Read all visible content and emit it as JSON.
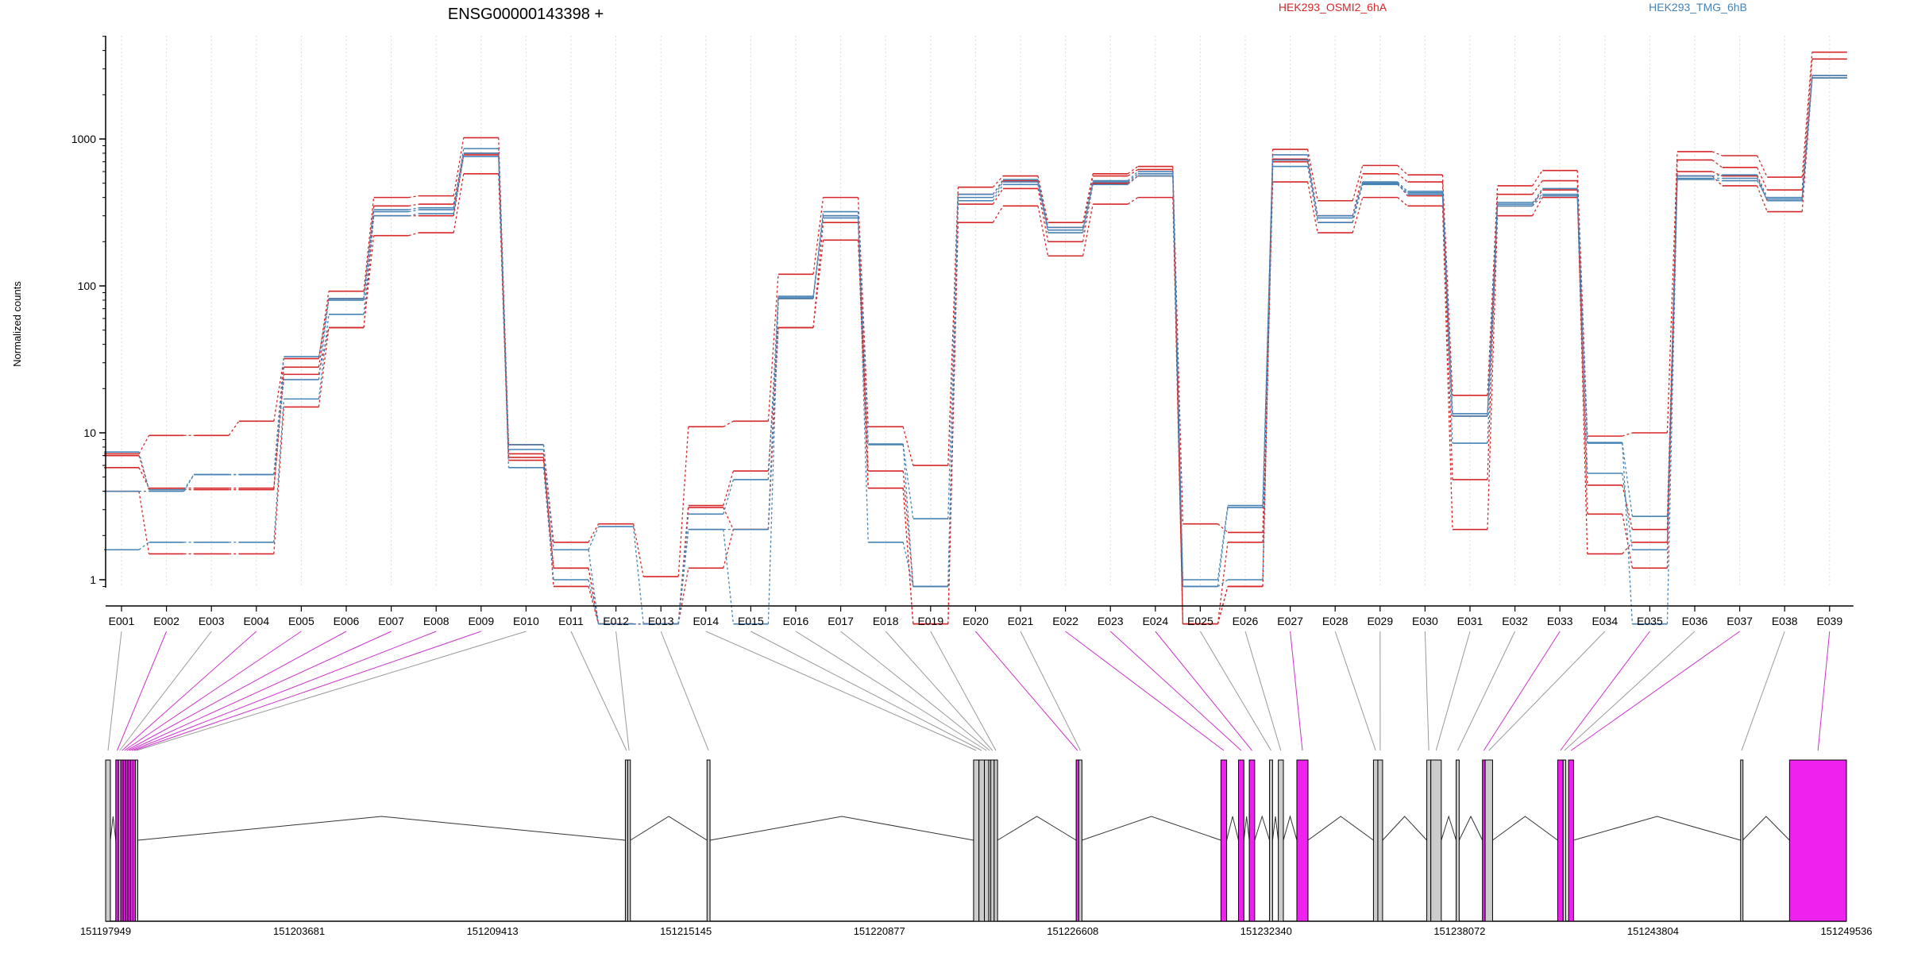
{
  "chart_data": {
    "type": "line",
    "title": "ENSG00000143398 +",
    "ylabel": "Normalized counts",
    "yscale": "log",
    "ylim": [
      0.4,
      5000
    ],
    "yticks": [
      1,
      10,
      100,
      1000
    ],
    "ytick_labels": [
      "1",
      "10",
      "100",
      "1000"
    ],
    "grid": true,
    "categories": [
      "E001",
      "E002",
      "E003",
      "E004",
      "E005",
      "E006",
      "E007",
      "E008",
      "E009",
      "E010",
      "E011",
      "E012",
      "E013",
      "E014",
      "E015",
      "E016",
      "E017",
      "E018",
      "E019",
      "E020",
      "E021",
      "E022",
      "E023",
      "E024",
      "E025",
      "E026",
      "E027",
      "E028",
      "E029",
      "E030",
      "E031",
      "E032",
      "E033",
      "E034",
      "E035",
      "E036",
      "E037",
      "E038",
      "E039"
    ],
    "series": [
      {
        "name": "HEK293_OSMI2_6hA",
        "color": "#d62728",
        "values": [
          7.2,
          9.6,
          9.6,
          12,
          32,
          92,
          400,
          410,
          1020,
          8.3,
          1.8,
          2.4,
          1.05,
          11,
          12,
          120,
          400,
          11,
          6,
          470,
          560,
          270,
          580,
          650,
          2.4,
          2.1,
          850,
          380,
          660,
          570,
          18,
          480,
          610,
          9.5,
          10,
          820,
          770,
          550,
          3900
        ]
      },
      {
        "name": "HEK293_OSMI2_6hA",
        "color": "#d62728",
        "values": [
          5.8,
          4.2,
          4.2,
          4.2,
          28,
          82,
          350,
          360,
          800,
          7.2,
          0.9,
          0.5,
          0.5,
          3.2,
          5.5,
          52,
          270,
          5.5,
          0.9,
          420,
          520,
          250,
          560,
          620,
          0.5,
          0.9,
          730,
          300,
          580,
          510,
          4.8,
          420,
          520,
          4.4,
          2.2,
          720,
          640,
          450,
          3500
        ]
      },
      {
        "name": "HEK293_OSMI2_6hA",
        "color": "#d62728",
        "values": [
          4,
          1.5,
          1.5,
          1.5,
          15,
          52,
          220,
          230,
          580,
          6.5,
          1.2,
          0.5,
          0.5,
          1.2,
          2.2,
          52,
          205,
          4.2,
          0.5,
          270,
          350,
          160,
          360,
          400,
          0.5,
          1.8,
          510,
          230,
          400,
          350,
          2.2,
          300,
          400,
          2.8,
          1.2,
          560,
          480,
          320,
          2600
        ]
      },
      {
        "name": "HEK293_OSMI2_6hA",
        "color": "#d62728",
        "values": [
          7,
          4.1,
          4.1,
          4.1,
          25,
          52,
          300,
          300,
          780,
          6.8,
          1.2,
          0.5,
          0.5,
          3.1,
          2.2,
          82,
          300,
          4.2,
          0.5,
          360,
          460,
          200,
          500,
          560,
          0.5,
          0.9,
          700,
          270,
          500,
          410,
          13,
          350,
          450,
          1.5,
          1.8,
          600,
          560,
          380,
          2700
        ]
      },
      {
        "name": "HEK293_TMG_6hB",
        "color": "#4682b4",
        "values": [
          7.4,
          4.1,
          5.2,
          5.2,
          33,
          80,
          330,
          340,
          860,
          8.3,
          1.6,
          2.3,
          0.5,
          2.8,
          4.8,
          85,
          320,
          8.3,
          2.6,
          420,
          530,
          250,
          520,
          600,
          1.0,
          3.2,
          780,
          300,
          510,
          440,
          13.5,
          360,
          460,
          8.5,
          2.7,
          560,
          570,
          400,
          2700
        ]
      },
      {
        "name": "HEK293_TMG_6hB",
        "color": "#4682b4",
        "values": [
          1.6,
          1.8,
          1.8,
          1.8,
          17,
          64,
          300,
          310,
          760,
          5.8,
          1.0,
          0.5,
          0.5,
          2.2,
          0.5,
          82,
          290,
          1.8,
          0.9,
          380,
          490,
          230,
          490,
          560,
          0.9,
          1.0,
          650,
          270,
          490,
          420,
          8.5,
          350,
          410,
          5.3,
          1.6,
          530,
          520,
          390,
          2600
        ]
      },
      {
        "name": "HEK293_TMG_6hB",
        "color": "#4682b4",
        "values": [
          4,
          4.0,
          5.2,
          5.2,
          23,
          82,
          320,
          330,
          800,
          7.7,
          1.6,
          0.5,
          0.5,
          2.2,
          2.2,
          83,
          300,
          8.4,
          0.9,
          400,
          510,
          240,
          510,
          580,
          0.9,
          3.1,
          720,
          290,
          500,
          430,
          13,
          370,
          420,
          8.6,
          0.5,
          540,
          540,
          380,
          2600
        ]
      }
    ],
    "legend": {
      "placement": "top",
      "entries": [
        {
          "label": "HEK293_OSMI2_6hA",
          "color": "#d62728"
        },
        {
          "label": "HEK293_TMG_6hB",
          "color": "#4682b4"
        }
      ]
    },
    "gene_model": {
      "coord_range": [
        151197949,
        151249536
      ],
      "coord_ticks": [
        151197949,
        151203681,
        151209413,
        151215145,
        151220877,
        151226608,
        151232340,
        151238072,
        151243804,
        151249536
      ],
      "coord_tick_labels": [
        "151197949",
        "151203681",
        "151209413",
        "151215145",
        "151220877",
        "151226608",
        "151232340",
        "151238072",
        "151243804",
        "151249536"
      ],
      "exons": [
        {
          "id": "E001",
          "start": 151197949,
          "end": 151198090,
          "highlight": false
        },
        {
          "id": "E002",
          "start": 151198250,
          "end": 151198330,
          "highlight": true
        },
        {
          "id": "E003",
          "start": 151198330,
          "end": 151198400,
          "highlight": false
        },
        {
          "id": "E004",
          "start": 151198400,
          "end": 151198470,
          "highlight": true
        },
        {
          "id": "E005",
          "start": 151198470,
          "end": 151198540,
          "highlight": true
        },
        {
          "id": "E006",
          "start": 151198540,
          "end": 151198610,
          "highlight": true
        },
        {
          "id": "E007",
          "start": 151198610,
          "end": 151198680,
          "highlight": true
        },
        {
          "id": "E008",
          "start": 151198680,
          "end": 151198760,
          "highlight": true
        },
        {
          "id": "E009",
          "start": 151198760,
          "end": 151198830,
          "highlight": true
        },
        {
          "id": "E010",
          "start": 151198830,
          "end": 151198900,
          "highlight": false
        },
        {
          "id": "E011",
          "start": 151213350,
          "end": 151213420,
          "highlight": false
        },
        {
          "id": "E012",
          "start": 151213420,
          "end": 151213500,
          "highlight": false
        },
        {
          "id": "E013",
          "start": 151215770,
          "end": 151215860,
          "highlight": false
        },
        {
          "id": "E014",
          "start": 151223670,
          "end": 151223830,
          "highlight": false
        },
        {
          "id": "E015",
          "start": 151223830,
          "end": 151223990,
          "highlight": false
        },
        {
          "id": "E016",
          "start": 151223990,
          "end": 151224120,
          "highlight": false
        },
        {
          "id": "E017",
          "start": 151224120,
          "end": 151224180,
          "highlight": false
        },
        {
          "id": "E018",
          "start": 151224180,
          "end": 151224280,
          "highlight": false
        },
        {
          "id": "E019",
          "start": 151224280,
          "end": 151224380,
          "highlight": false
        },
        {
          "id": "E020",
          "start": 151226710,
          "end": 151226790,
          "highlight": true
        },
        {
          "id": "E021",
          "start": 151226790,
          "end": 151226880,
          "highlight": false
        },
        {
          "id": "E022",
          "start": 151231000,
          "end": 151231170,
          "highlight": true
        },
        {
          "id": "E023",
          "start": 151231520,
          "end": 151231680,
          "highlight": true
        },
        {
          "id": "E024",
          "start": 151231840,
          "end": 151232000,
          "highlight": true
        },
        {
          "id": "E025",
          "start": 151232440,
          "end": 151232530,
          "highlight": false
        },
        {
          "id": "E026",
          "start": 151232700,
          "end": 151232850,
          "highlight": false
        },
        {
          "id": "E027",
          "start": 151233250,
          "end": 151233580,
          "highlight": true
        },
        {
          "id": "E028",
          "start": 151235520,
          "end": 151235650,
          "highlight": false
        },
        {
          "id": "E029",
          "start": 151235650,
          "end": 151235790,
          "highlight": false
        },
        {
          "id": "E030",
          "start": 151237100,
          "end": 151237220,
          "highlight": false
        },
        {
          "id": "E031",
          "start": 151237220,
          "end": 151237530,
          "highlight": false
        },
        {
          "id": "E032",
          "start": 151237970,
          "end": 151238060,
          "highlight": false
        },
        {
          "id": "E033",
          "start": 151238750,
          "end": 151238830,
          "highlight": true
        },
        {
          "id": "E034",
          "start": 151238830,
          "end": 151239050,
          "highlight": false
        },
        {
          "id": "E035",
          "start": 151240980,
          "end": 151241140,
          "highlight": true
        },
        {
          "id": "E036",
          "start": 151241140,
          "end": 151241220,
          "highlight": false
        },
        {
          "id": "E037",
          "start": 151241300,
          "end": 151241450,
          "highlight": true
        },
        {
          "id": "E038",
          "start": 151246400,
          "end": 151246460,
          "highlight": false
        },
        {
          "id": "E039",
          "start": 151247850,
          "end": 151249536,
          "highlight": true
        }
      ],
      "highlight_color": "#ee22ee",
      "exon_color": "#cccccc"
    }
  }
}
